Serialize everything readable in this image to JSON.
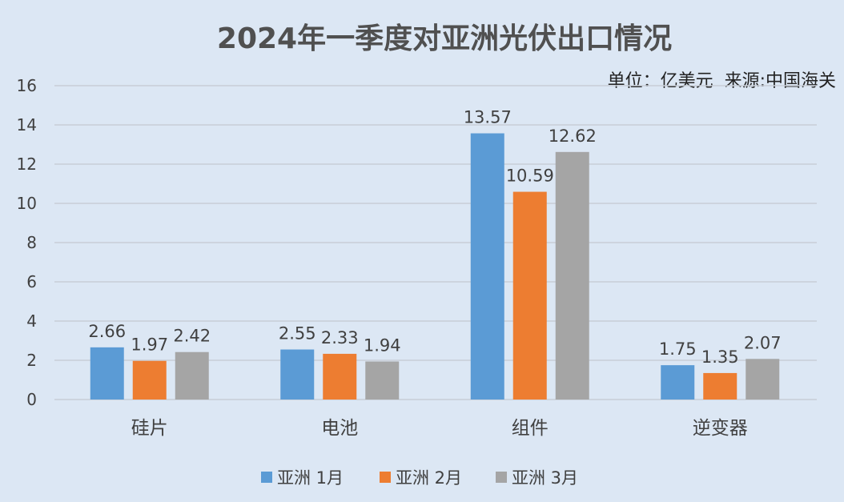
{
  "chart_data": {
    "type": "bar",
    "title": "2024年一季度对亚洲光伏出口情况",
    "note": "单位：亿美元  来源:中国海关",
    "categories": [
      "硅片",
      "电池",
      "组件",
      "逆变器"
    ],
    "series": [
      {
        "name": "亚洲 1月",
        "color": "#5b9bd5",
        "values": [
          2.66,
          2.55,
          13.57,
          1.75
        ]
      },
      {
        "name": "亚洲 2月",
        "color": "#ed7d31",
        "values": [
          1.97,
          2.33,
          10.59,
          1.35
        ]
      },
      {
        "name": "亚洲 3月",
        "color": "#a5a5a5",
        "values": [
          2.42,
          1.94,
          12.62,
          2.07
        ]
      }
    ],
    "ylim": [
      0,
      16
    ],
    "yticks": [
      0,
      2,
      4,
      6,
      8,
      10,
      12,
      14,
      16
    ],
    "grid": true,
    "legend_position": "bottom"
  }
}
